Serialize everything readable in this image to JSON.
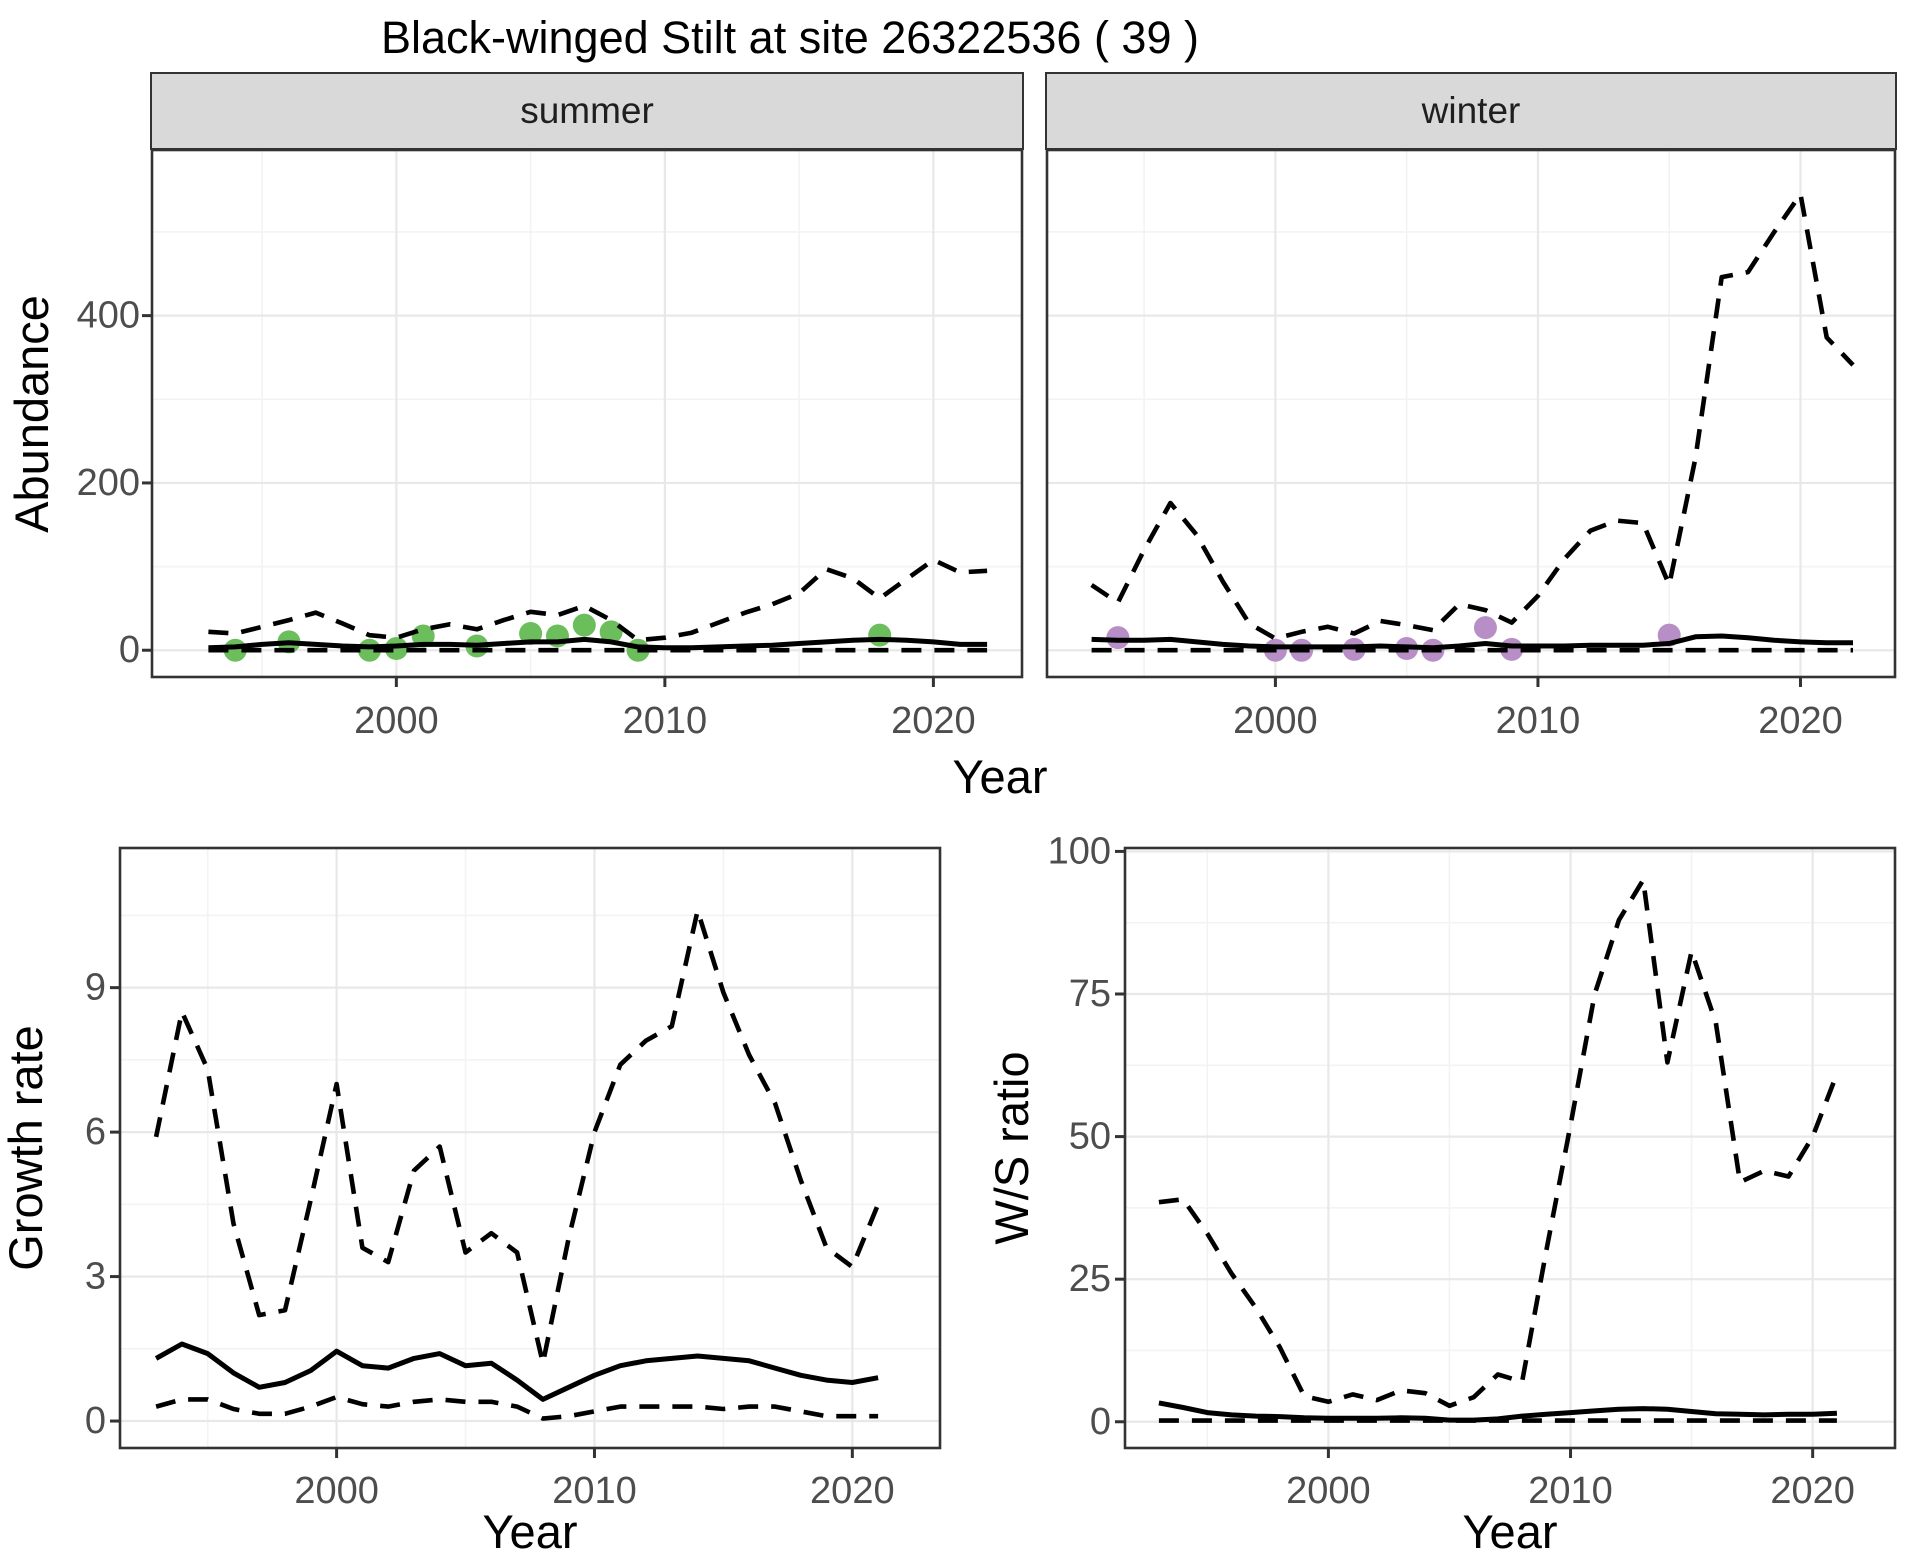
{
  "title": "Black-winged Stilt at site 26322536 ( 39 )",
  "colors": {
    "summer_points": "#6cbe5c",
    "winter_points": "#b78fc6",
    "line": "#000000",
    "grid_major": "#e8e8e8",
    "grid_minor": "#f3f3f3",
    "panel_border": "#333333",
    "strip_fill": "#d9d9d9",
    "axis_tick_text": "#4d4d4d",
    "axis_title_text": "#000000"
  },
  "axis_titles": {
    "top_y": "Abundance",
    "top_x": "Year",
    "bottom_left_y": "Growth rate",
    "bottom_left_x": "Year",
    "bottom_right_y": "W/S ratio",
    "bottom_right_x": "Year"
  },
  "chart_data": [
    {
      "type": "line",
      "facet_label": "summer",
      "ylabel": "Abundance",
      "xlabel": "Year",
      "xlim": [
        1990.9,
        2023.3
      ],
      "ylim": [
        -32,
        598
      ],
      "x_ticks": [
        2000,
        2010,
        2020
      ],
      "x_minor": [
        1995,
        2005,
        2015
      ],
      "y_ticks": [
        0,
        200,
        400
      ],
      "y_minor": [
        100,
        300,
        500
      ],
      "grid": true,
      "legend": "none",
      "series": [
        {
          "name": "upper_ci",
          "style": "dashed",
          "x": [
            1993,
            1994,
            1995,
            1996,
            1997,
            1998,
            1999,
            2000,
            2001,
            2002,
            2003,
            2004,
            2005,
            2006,
            2007,
            2008,
            2009,
            2010,
            2011,
            2012,
            2013,
            2014,
            2015,
            2016,
            2017,
            2018,
            2019,
            2020,
            2021,
            2022
          ],
          "y": [
            22,
            20,
            28,
            36,
            45,
            32,
            18,
            15,
            25,
            31,
            25,
            36,
            46,
            42,
            53,
            36,
            12,
            15,
            21,
            33,
            45,
            55,
            68,
            97,
            86,
            62,
            85,
            108,
            93,
            95
          ]
        },
        {
          "name": "mean",
          "style": "solid",
          "x": [
            1993,
            1994,
            1995,
            1996,
            1997,
            1998,
            1999,
            2000,
            2001,
            2002,
            2003,
            2004,
            2005,
            2006,
            2007,
            2008,
            2009,
            2010,
            2011,
            2012,
            2013,
            2014,
            2015,
            2016,
            2017,
            2018,
            2019,
            2020,
            2021,
            2022
          ],
          "y": [
            3,
            4,
            7,
            9,
            7,
            5,
            4,
            5,
            7,
            7,
            6,
            8,
            10,
            10,
            13,
            10,
            4,
            3,
            3,
            4,
            5,
            6,
            8,
            10,
            12,
            13,
            12,
            10,
            7,
            7
          ]
        },
        {
          "name": "lower_ci",
          "style": "dashed",
          "x": [
            1993,
            1994,
            1995,
            1996,
            1997,
            1998,
            1999,
            2000,
            2001,
            2002,
            2003,
            2004,
            2005,
            2006,
            2007,
            2008,
            2009,
            2010,
            2011,
            2012,
            2013,
            2014,
            2015,
            2016,
            2017,
            2018,
            2019,
            2020,
            2021,
            2022
          ],
          "y": [
            0,
            0,
            0,
            0,
            0,
            0,
            0,
            0,
            0,
            0,
            0,
            0,
            0,
            0,
            0,
            0,
            0,
            0,
            0,
            0,
            0,
            0,
            0,
            0,
            0,
            0,
            0,
            0,
            0,
            0
          ]
        }
      ],
      "points": {
        "name": "observed_counts",
        "color": "#6cbe5c",
        "x": [
          1994,
          1996,
          1999,
          2000,
          2001,
          2003,
          2005,
          2006,
          2007,
          2008,
          2009,
          2018
        ],
        "y": [
          0,
          10,
          0,
          2,
          17,
          5,
          20,
          17,
          30,
          22,
          0,
          18
        ]
      }
    },
    {
      "type": "line",
      "facet_label": "winter",
      "ylabel": "Abundance",
      "xlabel": "Year",
      "xlim": [
        1991.3,
        2023.6
      ],
      "ylim": [
        -32,
        598
      ],
      "x_ticks": [
        2000,
        2010,
        2020
      ],
      "x_minor": [
        1995,
        2005,
        2015
      ],
      "y_ticks": [
        0,
        200,
        400
      ],
      "y_minor": [
        100,
        300,
        500
      ],
      "grid": true,
      "legend": "none",
      "series": [
        {
          "name": "upper_ci",
          "style": "dashed",
          "x": [
            1993,
            1994,
            1995,
            1996,
            1997,
            1998,
            1999,
            2000,
            2001,
            2002,
            2003,
            2004,
            2005,
            2006,
            2007,
            2008,
            2009,
            2010,
            2011,
            2012,
            2013,
            2014,
            2015,
            2016,
            2017,
            2018,
            2019,
            2020,
            2021,
            2022
          ],
          "y": [
            78,
            57,
            120,
            176,
            138,
            82,
            32,
            14,
            22,
            28,
            20,
            35,
            30,
            24,
            55,
            48,
            33,
            65,
            109,
            143,
            155,
            152,
            78,
            230,
            446,
            452,
            500,
            545,
            374,
            341
          ]
        },
        {
          "name": "mean",
          "style": "solid",
          "x": [
            1993,
            1994,
            1995,
            1996,
            1997,
            1998,
            1999,
            2000,
            2001,
            2002,
            2003,
            2004,
            2005,
            2006,
            2007,
            2008,
            2009,
            2010,
            2011,
            2012,
            2013,
            2014,
            2015,
            2016,
            2017,
            2018,
            2019,
            2020,
            2021,
            2022
          ],
          "y": [
            13,
            12,
            12,
            13,
            10,
            7,
            5,
            4,
            4,
            4,
            4,
            5,
            4,
            3,
            5,
            8,
            5,
            5,
            5,
            6,
            6,
            6,
            8,
            16,
            17,
            15,
            12,
            10,
            9,
            9
          ]
        },
        {
          "name": "lower_ci",
          "style": "dashed",
          "x": [
            1993,
            1994,
            1995,
            1996,
            1997,
            1998,
            1999,
            2000,
            2001,
            2002,
            2003,
            2004,
            2005,
            2006,
            2007,
            2008,
            2009,
            2010,
            2011,
            2012,
            2013,
            2014,
            2015,
            2016,
            2017,
            2018,
            2019,
            2020,
            2021,
            2022
          ],
          "y": [
            0,
            0,
            0,
            0,
            0,
            0,
            0,
            0,
            0,
            0,
            0,
            0,
            0,
            0,
            0,
            0,
            0,
            0,
            0,
            0,
            0,
            0,
            0,
            0,
            0,
            0,
            0,
            0,
            0,
            0
          ]
        }
      ],
      "points": {
        "name": "observed_counts",
        "color": "#b78fc6",
        "x": [
          1994,
          2000,
          2001,
          2003,
          2005,
          2006,
          2008,
          2009,
          2015
        ],
        "y": [
          15,
          0,
          0,
          1,
          2,
          0,
          27,
          1,
          18
        ]
      }
    },
    {
      "type": "line",
      "facet_label": "",
      "ylabel": "Growth rate",
      "xlabel": "Year",
      "xlim": [
        1991.6,
        2023.4
      ],
      "ylim": [
        -0.56,
        11.9
      ],
      "x_ticks": [
        2000,
        2010,
        2020
      ],
      "x_minor": [
        1995,
        2005,
        2015
      ],
      "y_ticks": [
        0,
        3,
        6,
        9
      ],
      "y_minor": [
        1.5,
        4.5,
        7.5,
        10.5
      ],
      "grid": true,
      "legend": "none",
      "series": [
        {
          "name": "upper_ci",
          "style": "dashed",
          "x": [
            1993,
            1994,
            1995,
            1996,
            1997,
            1998,
            1999,
            2000,
            2001,
            2002,
            2003,
            2004,
            2005,
            2006,
            2007,
            2008,
            2009,
            2010,
            2011,
            2012,
            2013,
            2014,
            2015,
            2016,
            2017,
            2018,
            2019,
            2020,
            2021
          ],
          "y": [
            5.9,
            8.5,
            7.3,
            4.1,
            2.2,
            2.3,
            4.6,
            7.0,
            3.6,
            3.3,
            5.2,
            5.7,
            3.5,
            3.9,
            3.5,
            1.2,
            3.8,
            6.0,
            7.4,
            7.9,
            8.2,
            10.6,
            8.9,
            7.6,
            6.6,
            5.0,
            3.6,
            3.2,
            4.5
          ]
        },
        {
          "name": "mean",
          "style": "solid",
          "x": [
            1993,
            1994,
            1995,
            1996,
            1997,
            1998,
            1999,
            2000,
            2001,
            2002,
            2003,
            2004,
            2005,
            2006,
            2007,
            2008,
            2009,
            2010,
            2011,
            2012,
            2013,
            2014,
            2015,
            2016,
            2017,
            2018,
            2019,
            2020,
            2021
          ],
          "y": [
            1.3,
            1.6,
            1.4,
            1.0,
            0.7,
            0.8,
            1.05,
            1.45,
            1.15,
            1.1,
            1.3,
            1.4,
            1.15,
            1.2,
            0.85,
            0.45,
            0.7,
            0.95,
            1.15,
            1.25,
            1.3,
            1.35,
            1.3,
            1.25,
            1.1,
            0.95,
            0.85,
            0.8,
            0.9
          ]
        },
        {
          "name": "lower_ci",
          "style": "dashed",
          "x": [
            1993,
            1994,
            1995,
            1996,
            1997,
            1998,
            1999,
            2000,
            2001,
            2002,
            2003,
            2004,
            2005,
            2006,
            2007,
            2008,
            2009,
            2010,
            2011,
            2012,
            2013,
            2014,
            2015,
            2016,
            2017,
            2018,
            2019,
            2020,
            2021
          ],
          "y": [
            0.3,
            0.45,
            0.45,
            0.25,
            0.15,
            0.15,
            0.3,
            0.5,
            0.35,
            0.3,
            0.4,
            0.45,
            0.4,
            0.4,
            0.3,
            0.05,
            0.1,
            0.2,
            0.3,
            0.3,
            0.3,
            0.3,
            0.25,
            0.3,
            0.3,
            0.2,
            0.1,
            0.1,
            0.1
          ]
        }
      ],
      "points": null
    },
    {
      "type": "line",
      "facet_label": "",
      "ylabel": "W/S ratio",
      "xlabel": "Year",
      "xlim": [
        1991.6,
        2023.4
      ],
      "ylim": [
        -4.6,
        100.6
      ],
      "x_ticks": [
        2000,
        2010,
        2020
      ],
      "x_minor": [
        1995,
        2005,
        2015
      ],
      "y_ticks": [
        0,
        25,
        50,
        75,
        100
      ],
      "y_minor": [
        12.5,
        37.5,
        62.5,
        87.5
      ],
      "grid": true,
      "legend": "none",
      "series": [
        {
          "name": "upper_ci",
          "style": "dashed",
          "x": [
            1993,
            1994,
            1995,
            1996,
            1997,
            1998,
            1999,
            2000,
            2001,
            2002,
            2003,
            2004,
            2005,
            2006,
            2007,
            2008,
            2009,
            2010,
            2011,
            2012,
            2013,
            2014,
            2015,
            2016,
            2017,
            2018,
            2019,
            2020,
            2021
          ],
          "y": [
            38.5,
            39,
            33,
            26,
            20,
            13,
            4.5,
            3.5,
            4.8,
            3.8,
            5.5,
            5.0,
            2.8,
            4.3,
            8.3,
            7.0,
            30,
            52,
            75,
            88,
            95,
            63,
            82.5,
            70,
            42,
            44,
            43,
            50,
            61
          ]
        },
        {
          "name": "mean",
          "style": "solid",
          "x": [
            1993,
            1994,
            1995,
            1996,
            1997,
            1998,
            1999,
            2000,
            2001,
            2002,
            2003,
            2004,
            2005,
            2006,
            2007,
            2008,
            2009,
            2010,
            2011,
            2012,
            2013,
            2014,
            2015,
            2016,
            2017,
            2018,
            2019,
            2020,
            2021
          ],
          "y": [
            3.3,
            2.5,
            1.6,
            1.2,
            1.0,
            0.9,
            0.7,
            0.6,
            0.6,
            0.6,
            0.7,
            0.6,
            0.3,
            0.3,
            0.5,
            1.0,
            1.3,
            1.6,
            1.9,
            2.2,
            2.3,
            2.2,
            1.8,
            1.4,
            1.3,
            1.2,
            1.3,
            1.3,
            1.5
          ]
        },
        {
          "name": "lower_ci",
          "style": "dashed",
          "x": [
            1993,
            1994,
            1995,
            1996,
            1997,
            1998,
            1999,
            2000,
            2001,
            2002,
            2003,
            2004,
            2005,
            2006,
            2007,
            2008,
            2009,
            2010,
            2011,
            2012,
            2013,
            2014,
            2015,
            2016,
            2017,
            2018,
            2019,
            2020,
            2021
          ],
          "y": [
            0.2,
            0.2,
            0.2,
            0.2,
            0.2,
            0.2,
            0.2,
            0.2,
            0.2,
            0.2,
            0.2,
            0.2,
            0.2,
            0.2,
            0.2,
            0.2,
            0.2,
            0.2,
            0.2,
            0.2,
            0.2,
            0.2,
            0.2,
            0.2,
            0.2,
            0.2,
            0.2,
            0.2,
            0.2
          ]
        }
      ],
      "points": null
    }
  ]
}
